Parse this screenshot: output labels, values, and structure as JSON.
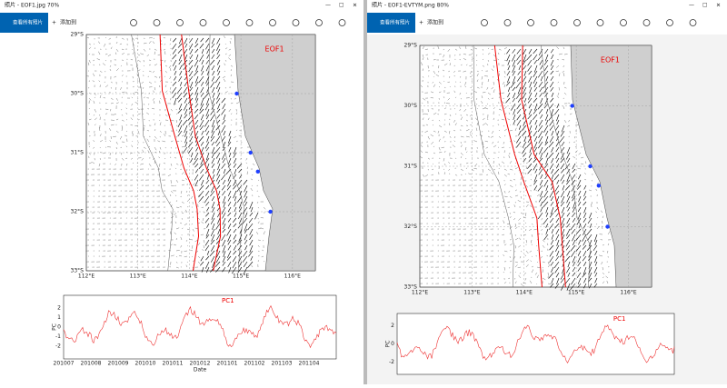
{
  "windows": [
    {
      "title": "照片 - EOF1.jpg  70%",
      "view_all": "查看所有照片",
      "add_to": "添加到",
      "map": {
        "label": "EOF1",
        "lat_labels": [
          "29°S",
          "30°S",
          "31°S",
          "32°S",
          "33°S"
        ],
        "lon_labels": [
          "112°E",
          "113°E",
          "114°E",
          "115°E",
          "116°E"
        ]
      },
      "pc": {
        "title": "PC1",
        "ylabel": "PC",
        "yticks": [
          "2",
          "1",
          "0",
          "-1",
          "-2"
        ],
        "xticks": [
          "201007",
          "201008",
          "201009",
          "201010",
          "201011",
          "201012",
          "201101",
          "201102",
          "201103",
          "201104"
        ],
        "xlabel": "Date"
      }
    },
    {
      "title": "照片 - EOF1-EVTYM.png  80%",
      "view_all": "查看所有照片",
      "add_to": "添加到",
      "map": {
        "label": "EOF1",
        "lat_labels": [
          "29°S",
          "30°S",
          "31°S",
          "32°S",
          "33°S"
        ],
        "lon_labels": [
          "112°E",
          "113°E",
          "114°E",
          "115°E",
          "116°E"
        ]
      },
      "pc": {
        "title": "PC1",
        "ylabel": "PC",
        "yticks": [
          "2",
          "0",
          "-2"
        ],
        "xticks": [],
        "xlabel": ""
      }
    }
  ]
}
